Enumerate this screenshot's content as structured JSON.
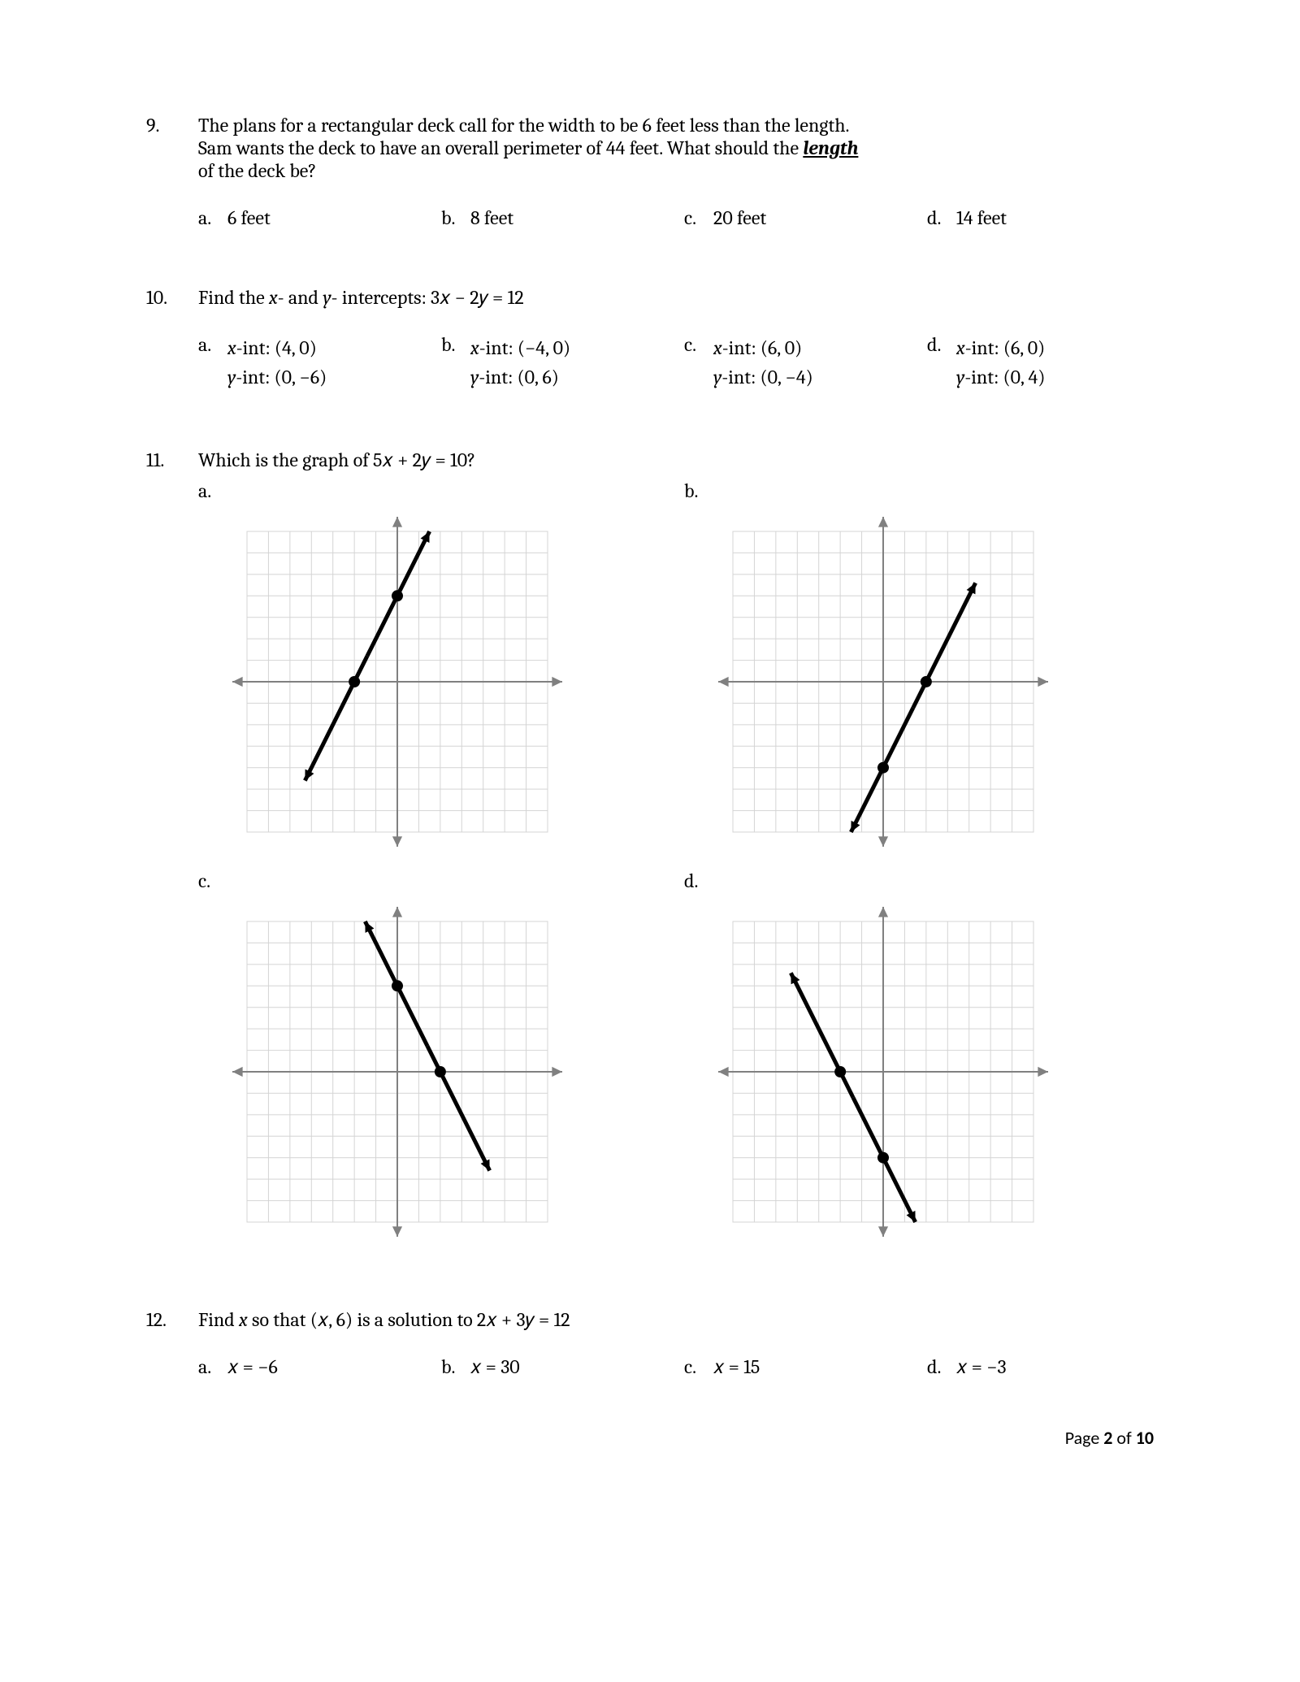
{
  "q9": {
    "num": "9.",
    "prompt_line1": "The plans for a rectangular deck call for the width to be 6 feet less than the length.",
    "prompt_line2": "Sam wants the deck to have an overall perimeter of 44 feet.  What should the ",
    "prompt_underlined": "length",
    "prompt_line3": "of the deck be?",
    "choices": [
      {
        "l": "a.",
        "t": "6 feet"
      },
      {
        "l": "b.",
        "t": "8 feet"
      },
      {
        "l": "c.",
        "t": "20 feet"
      },
      {
        "l": "d.",
        "t": "14 feet"
      }
    ]
  },
  "q10": {
    "num": "10.",
    "prompt_prefix": "Find the ",
    "var_x": "x",
    "dash_and": "- and ",
    "var_y": "y",
    "prompt_mid": "- intercepts: ",
    "equation": "3𝑥 − 2𝑦 = 12",
    "choices": [
      {
        "l": "a.",
        "x": "-int: (4, 0)",
        "y": "-int: (0,  −6)"
      },
      {
        "l": "b.",
        "x": "-int: (−4, 0)",
        "y": "-int: (0, 6)"
      },
      {
        "l": "c.",
        "x": "-int: (6, 0)",
        "y": "-int: (0, −4)"
      },
      {
        "l": "d.",
        "x": "-int: (6, 0)",
        "y": "-int: (0, 4)"
      }
    ]
  },
  "q11": {
    "num": "11.",
    "prompt_prefix": "Which is the graph of ",
    "equation": "5𝑥 + 2𝑦 = 10",
    "qmark": "?",
    "labels": {
      "a": "a.",
      "b": "b.",
      "c": "c.",
      "d": "d."
    },
    "graph_style": {
      "grid_extent": 7,
      "grid_color": "#d4d4d4",
      "axis_color": "#808080",
      "bg_color": "#ffffff",
      "line_color": "#000000",
      "line_width": 5,
      "point_radius": 7,
      "arrow_size": 14
    },
    "graphs": {
      "a": {
        "points": [
          [
            -2,
            0
          ],
          [
            0,
            4
          ]
        ],
        "line_extent": [
          [
            -4.3,
            -4.6
          ],
          [
            2.3,
            8.6
          ]
        ]
      },
      "b": {
        "points": [
          [
            2,
            0
          ],
          [
            0,
            -4
          ]
        ],
        "line_extent": [
          [
            -2.3,
            -8.6
          ],
          [
            4.3,
            4.6
          ]
        ]
      },
      "c": {
        "points": [
          [
            2,
            0
          ],
          [
            0,
            4
          ]
        ],
        "line_extent": [
          [
            -2.3,
            8.6
          ],
          [
            4.3,
            -4.6
          ]
        ]
      },
      "d": {
        "points": [
          [
            -2,
            0
          ],
          [
            0,
            -4
          ]
        ],
        "line_extent": [
          [
            -4.3,
            4.6
          ],
          [
            2.3,
            -8.6
          ]
        ]
      }
    }
  },
  "q12": {
    "num": "12.",
    "prompt_prefix": "Find ",
    "var_x": "x",
    "prompt_mid": " so that ",
    "paren": "(𝑥, 6)",
    "prompt_mid2": " is a solution to ",
    "equation": "2𝑥 + 3𝑦 = 12",
    "choices": [
      {
        "l": "a.",
        "t": "𝑥 = −6"
      },
      {
        "l": "b.",
        "t": "𝑥 = 30"
      },
      {
        "l": "c.",
        "t": "𝑥 = 15"
      },
      {
        "l": "d.",
        "t": "𝑥 = −3"
      }
    ]
  },
  "footer": {
    "pre": "Page ",
    "cur": "2",
    "mid": " of ",
    "tot": "10"
  }
}
